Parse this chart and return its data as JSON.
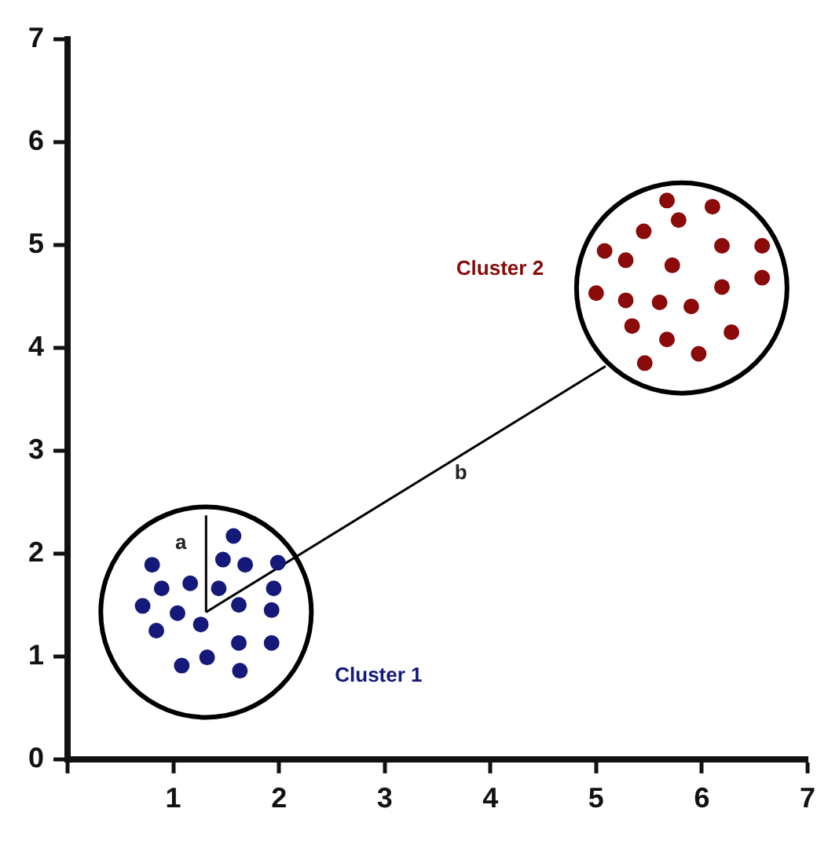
{
  "chart_data": {
    "type": "scatter",
    "xlim": [
      0,
      7
    ],
    "ylim": [
      0,
      7
    ],
    "xticks": [
      {
        "value": 0,
        "label": null
      },
      1,
      2,
      3,
      4,
      5,
      6,
      7
    ],
    "yticks": [
      0,
      1,
      2,
      3,
      4,
      5,
      6,
      7
    ],
    "grid": false,
    "legend": false,
    "marker": "circle",
    "series": [
      {
        "type": "bubble",
        "color": "#000000",
        "x": [
          1.31,
          5.81
        ],
        "values": [
          1.43,
          4.58
        ],
        "sizes": [
          1,
          1
        ]
      },
      {
        "type": "line",
        "name": "a",
        "color": "#000000",
        "marker": "none",
        "x": [
          1.31,
          1.31
        ],
        "values": [
          1.43,
          2.37
        ]
      },
      {
        "type": "line",
        "name": "b",
        "color": "#000000",
        "marker": "none",
        "x": [
          1.31,
          5.09
        ],
        "values": [
          1.43,
          3.82
        ]
      },
      {
        "type": "scatter",
        "name": "Cluster 1",
        "color": "#14197a",
        "x": [
          0.8,
          0.89,
          0.71,
          0.84,
          1.08,
          1.32,
          1.26,
          1.04,
          1.16,
          1.43,
          1.47,
          1.57,
          1.68,
          1.99,
          1.95,
          1.62,
          1.93,
          1.62,
          1.93,
          1.63
        ],
        "values": [
          1.89,
          1.66,
          1.49,
          1.25,
          0.91,
          0.99,
          1.31,
          1.42,
          1.71,
          1.66,
          1.94,
          2.17,
          1.89,
          1.91,
          1.66,
          1.5,
          1.45,
          1.13,
          1.13,
          0.86
        ]
      },
      {
        "type": "scatter",
        "name": "Cluster 2",
        "color": "#8b0a0a",
        "x": [
          5.67,
          6.1,
          5.78,
          5.45,
          5.08,
          5.28,
          5.72,
          6.19,
          6.57,
          6.57,
          6.19,
          5.0,
          5.28,
          5.6,
          5.9,
          5.34,
          5.67,
          6.28,
          5.97,
          5.46
        ],
        "values": [
          5.43,
          5.37,
          5.24,
          5.13,
          4.94,
          4.85,
          4.8,
          4.99,
          4.99,
          4.68,
          4.59,
          4.53,
          4.46,
          4.44,
          4.4,
          4.21,
          4.08,
          4.15,
          3.94,
          3.85
        ]
      }
    ]
  }
}
